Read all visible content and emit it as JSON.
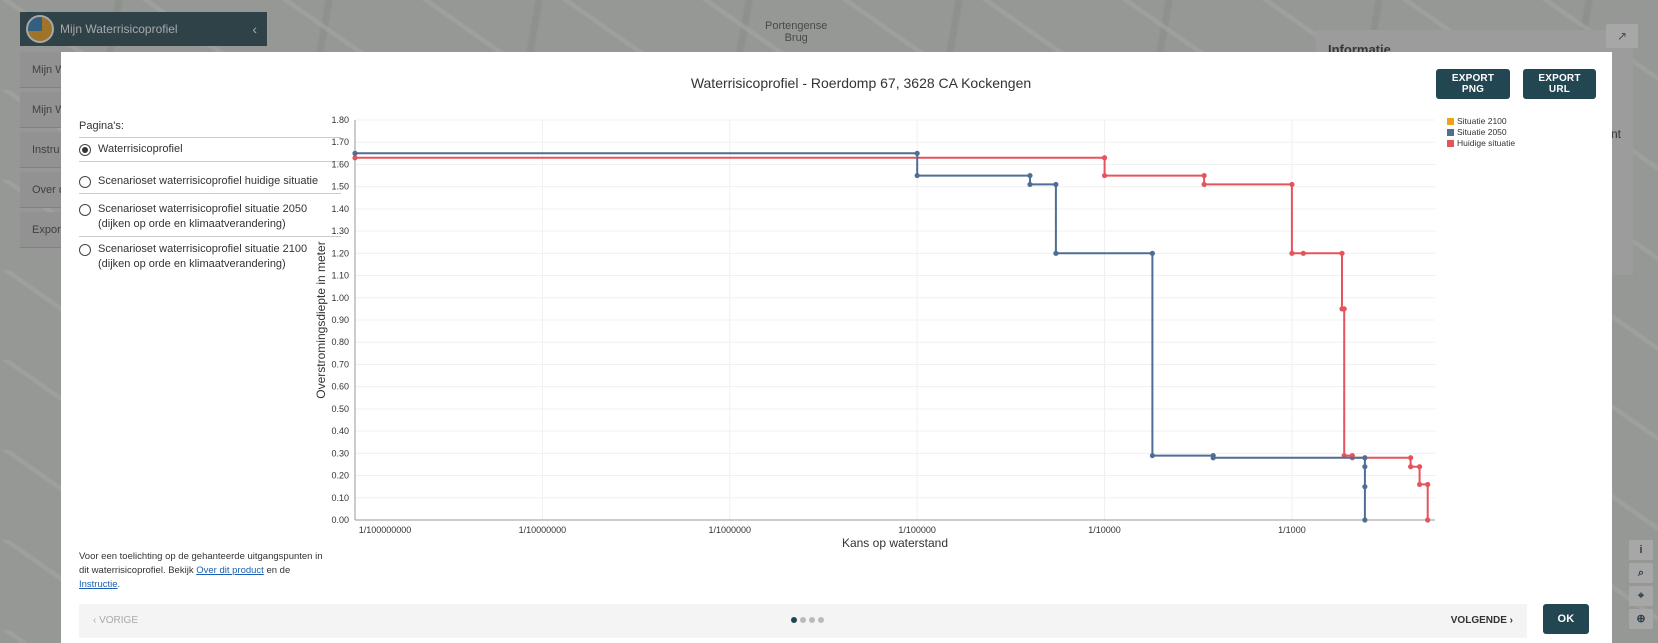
{
  "map": {
    "label_line1": "Portengense",
    "label_line2": "Brug"
  },
  "app": {
    "title": "Mijn Waterrisicoprofiel",
    "collapse_icon": "chevron-left-icon",
    "menu_items": [
      "Mijn W",
      "Mijn W",
      "Instru",
      "Over d",
      "Expor"
    ]
  },
  "info_panel": {
    "title": "Informatie",
    "snippet": "nt"
  },
  "map_tools": [
    "i",
    "⌕",
    "⌖",
    "⊕"
  ],
  "modal": {
    "title": "Waterrisicoprofiel - Roerdomp 67, 3628 CA Kockengen",
    "export_png_label": "EXPORT PNG",
    "export_url_label": "EXPORT URL",
    "pages_label": "Pagina's:",
    "pages": [
      {
        "label": "Waterrisicoprofiel",
        "selected": true
      },
      {
        "label": "Scenarioset waterrisicoprofiel huidige situatie",
        "selected": false
      },
      {
        "label": "Scenarioset waterrisicoprofiel situatie 2050 (dijken op orde en klimaatverandering)",
        "selected": false
      },
      {
        "label": "Scenarioset waterrisicoprofiel situatie 2100 (dijken op orde en klimaatverandering)",
        "selected": false
      }
    ],
    "footnote_text": "Voor een toelichting op de gehanteerde uitgangspunten in dit waterrisicoprofiel. Bekijk ",
    "footnote_link1": "Over dit product",
    "footnote_mid": " en de ",
    "footnote_link2": "Instructie",
    "footnote_end": ".",
    "prev_label": "‹  VORIGE",
    "next_label": "VOLGENDE  ›",
    "ok_label": "OK",
    "page_count": 4,
    "active_page": 1
  },
  "chart_data": {
    "type": "line",
    "xlabel": "Kans op waterstand",
    "ylabel": "Overstromingsdiepte in meter",
    "xscale": "log",
    "x_ticks": [
      "1/100000000",
      "1/10000000",
      "1/1000000",
      "1/100000",
      "1/10000",
      "1/1000"
    ],
    "x_tick_values": [
      1e-08,
      1e-07,
      1e-06,
      1e-05,
      0.0001,
      0.001
    ],
    "xlim": [
      1e-08,
      0.0058
    ],
    "ylim": [
      0,
      1.8
    ],
    "y_ticks": [
      "0.00",
      "0.10",
      "0.20",
      "0.30",
      "0.40",
      "0.50",
      "0.60",
      "0.70",
      "0.80",
      "0.90",
      "1.00",
      "1.10",
      "1.20",
      "1.30",
      "1.40",
      "1.50",
      "1.60",
      "1.70",
      "1.80"
    ],
    "grid": true,
    "legend_position": "top-right",
    "series": [
      {
        "name": "Situatie 2100",
        "color": "#f0a21b",
        "points": []
      },
      {
        "name": "Situatie 2050",
        "color": "#4f6d95",
        "points": [
          [
            1e-08,
            1.65
          ],
          [
            1e-05,
            1.65
          ],
          [
            1e-05,
            1.55
          ],
          [
            4e-05,
            1.55
          ],
          [
            4e-05,
            1.51
          ],
          [
            5.5e-05,
            1.51
          ],
          [
            5.5e-05,
            1.2
          ],
          [
            0.00018,
            1.2
          ],
          [
            0.00018,
            0.29
          ],
          [
            0.00038,
            0.29
          ],
          [
            0.00038,
            0.28
          ],
          [
            0.00245,
            0.28
          ],
          [
            0.00245,
            0.24
          ],
          [
            0.00245,
            0.15
          ],
          [
            0.00245,
            0.0
          ]
        ]
      },
      {
        "name": "Huidige situatie",
        "color": "#e5535b",
        "points": [
          [
            1e-08,
            1.63
          ],
          [
            0.0001,
            1.63
          ],
          [
            0.0001,
            1.55
          ],
          [
            0.00034,
            1.55
          ],
          [
            0.00034,
            1.51
          ],
          [
            0.001,
            1.51
          ],
          [
            0.001,
            1.2
          ],
          [
            0.00115,
            1.2
          ],
          [
            0.00185,
            1.2
          ],
          [
            0.00185,
            0.95
          ],
          [
            0.0019,
            0.95
          ],
          [
            0.0019,
            0.29
          ],
          [
            0.0021,
            0.29
          ],
          [
            0.0021,
            0.28
          ],
          [
            0.0043,
            0.28
          ],
          [
            0.0043,
            0.24
          ],
          [
            0.0048,
            0.24
          ],
          [
            0.0048,
            0.16
          ],
          [
            0.0053,
            0.16
          ],
          [
            0.0053,
            0.0
          ]
        ]
      }
    ]
  }
}
